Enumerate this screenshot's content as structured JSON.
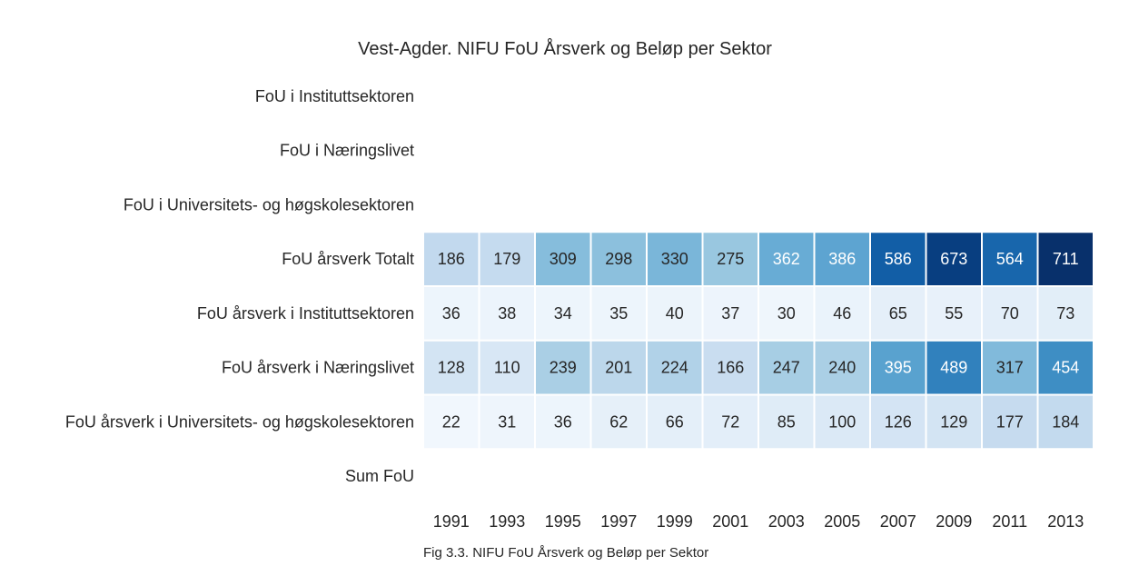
{
  "chart_data": {
    "type": "heatmap",
    "title": "Vest-Agder. NIFU FoU Årsverk og Beløp per Sektor",
    "caption": "Fig 3.3. NIFU FoU Årsverk og Beløp per Sektor",
    "x": [
      "1991",
      "1993",
      "1995",
      "1997",
      "1999",
      "2001",
      "2003",
      "2005",
      "2007",
      "2009",
      "2011",
      "2013"
    ],
    "rows": [
      {
        "label": "FoU i Instituttsektoren",
        "values": []
      },
      {
        "label": "FoU i Næringslivet",
        "values": []
      },
      {
        "label": "FoU i Universitets- og høgskolesektoren",
        "values": []
      },
      {
        "label": "FoU årsverk Totalt",
        "values": [
          186,
          179,
          309,
          298,
          330,
          275,
          362,
          386,
          586,
          673,
          564,
          711
        ]
      },
      {
        "label": "FoU årsverk i Instituttsektoren",
        "values": [
          36,
          38,
          34,
          35,
          40,
          37,
          30,
          46,
          65,
          55,
          70,
          73
        ]
      },
      {
        "label": "FoU årsverk i Næringslivet",
        "values": [
          128,
          110,
          239,
          201,
          224,
          166,
          247,
          240,
          395,
          489,
          317,
          454
        ]
      },
      {
        "label": "FoU årsverk i Universitets- og høgskolesektoren",
        "values": [
          22,
          31,
          36,
          62,
          66,
          72,
          85,
          100,
          126,
          129,
          177,
          184
        ]
      },
      {
        "label": "Sum FoU",
        "values": []
      }
    ],
    "colormap": "Blues",
    "vmin": 0,
    "vmax": 711,
    "grid": false,
    "colorbar": false
  }
}
